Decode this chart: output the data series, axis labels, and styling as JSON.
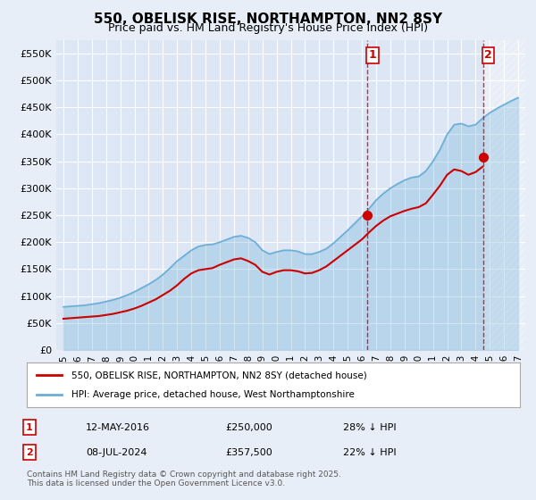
{
  "title": "550, OBELISK RISE, NORTHAMPTON, NN2 8SY",
  "subtitle": "Price paid vs. HM Land Registry's House Price Index (HPI)",
  "bg_color": "#e8eef8",
  "plot_bg_color": "#dce6f5",
  "grid_color": "#ffffff",
  "red_color": "#cc0000",
  "blue_color": "#6baed6",
  "point1_year": 2016.36,
  "point1_price": 250000,
  "point2_year": 2024.52,
  "point2_price": 357500,
  "legend1": "550, OBELISK RISE, NORTHAMPTON, NN2 8SY (detached house)",
  "legend2": "HPI: Average price, detached house, West Northamptonshire",
  "label1_date": "12-MAY-2016",
  "label1_price": "£250,000",
  "label1_hpi": "28% ↓ HPI",
  "label2_date": "08-JUL-2024",
  "label2_price": "£357,500",
  "label2_hpi": "22% ↓ HPI",
  "footer": "Contains HM Land Registry data © Crown copyright and database right 2025.\nThis data is licensed under the Open Government Licence v3.0.",
  "hpi_years": [
    1995,
    1995.5,
    1996,
    1996.5,
    1997,
    1997.5,
    1998,
    1998.5,
    1999,
    1999.5,
    2000,
    2000.5,
    2001,
    2001.5,
    2002,
    2002.5,
    2003,
    2003.5,
    2004,
    2004.5,
    2005,
    2005.5,
    2006,
    2006.5,
    2007,
    2007.5,
    2008,
    2008.5,
    2009,
    2009.5,
    2010,
    2010.5,
    2011,
    2011.5,
    2012,
    2012.5,
    2013,
    2013.5,
    2014,
    2014.5,
    2015,
    2015.5,
    2016,
    2016.5,
    2017,
    2017.5,
    2018,
    2018.5,
    2019,
    2019.5,
    2020,
    2020.5,
    2021,
    2021.5,
    2022,
    2022.5,
    2023,
    2023.5,
    2024,
    2024.5,
    2025,
    2025.5,
    2026,
    2026.5,
    2027
  ],
  "hpi_values": [
    80000,
    81000,
    82000,
    83000,
    85000,
    87000,
    90000,
    93000,
    97000,
    102000,
    108000,
    115000,
    122000,
    130000,
    140000,
    152000,
    165000,
    175000,
    185000,
    192000,
    195000,
    196000,
    200000,
    205000,
    210000,
    212000,
    208000,
    200000,
    185000,
    178000,
    182000,
    185000,
    185000,
    183000,
    178000,
    178000,
    182000,
    188000,
    198000,
    210000,
    222000,
    235000,
    248000,
    262000,
    278000,
    290000,
    300000,
    308000,
    315000,
    320000,
    322000,
    332000,
    350000,
    372000,
    400000,
    418000,
    420000,
    415000,
    418000,
    430000,
    440000,
    448000,
    455000,
    462000,
    468000
  ],
  "red_years": [
    1995,
    1995.5,
    1996,
    1996.5,
    1997,
    1997.5,
    1998,
    1998.5,
    1999,
    1999.5,
    2000,
    2000.5,
    2001,
    2001.5,
    2002,
    2002.5,
    2003,
    2003.5,
    2004,
    2004.5,
    2005,
    2005.5,
    2006,
    2006.5,
    2007,
    2007.5,
    2008,
    2008.5,
    2009,
    2009.5,
    2010,
    2010.5,
    2011,
    2011.5,
    2012,
    2012.5,
    2013,
    2013.5,
    2014,
    2014.5,
    2015,
    2015.5,
    2016,
    2016.5,
    2017,
    2017.5,
    2018,
    2018.5,
    2019,
    2019.5,
    2020,
    2020.5,
    2021,
    2021.5,
    2022,
    2022.5,
    2023,
    2023.5,
    2024,
    2024.5
  ],
  "red_values": [
    58000,
    59000,
    60000,
    61000,
    62000,
    63000,
    65000,
    67000,
    70000,
    73000,
    77000,
    82000,
    88000,
    94000,
    102000,
    110000,
    120000,
    132000,
    142000,
    148000,
    150000,
    152000,
    158000,
    163000,
    168000,
    170000,
    165000,
    158000,
    145000,
    140000,
    145000,
    148000,
    148000,
    146000,
    142000,
    143000,
    148000,
    155000,
    165000,
    175000,
    185000,
    195000,
    205000,
    218000,
    230000,
    240000,
    248000,
    253000,
    258000,
    262000,
    265000,
    272000,
    288000,
    305000,
    325000,
    335000,
    332000,
    325000,
    330000,
    340000
  ],
  "ylim": [
    0,
    575000
  ],
  "xlim": [
    1994.5,
    2027.5
  ],
  "yticks": [
    0,
    50000,
    100000,
    150000,
    200000,
    250000,
    300000,
    350000,
    400000,
    450000,
    500000,
    550000
  ],
  "ytick_labels": [
    "£0",
    "£50K",
    "£100K",
    "£150K",
    "£200K",
    "£250K",
    "£300K",
    "£350K",
    "£400K",
    "£450K",
    "£500K",
    "£550K"
  ],
  "xticks": [
    1995,
    1996,
    1997,
    1998,
    1999,
    2000,
    2001,
    2002,
    2003,
    2004,
    2005,
    2006,
    2007,
    2008,
    2009,
    2010,
    2011,
    2012,
    2013,
    2014,
    2015,
    2016,
    2017,
    2018,
    2019,
    2020,
    2021,
    2022,
    2023,
    2024,
    2025,
    2026,
    2027
  ]
}
